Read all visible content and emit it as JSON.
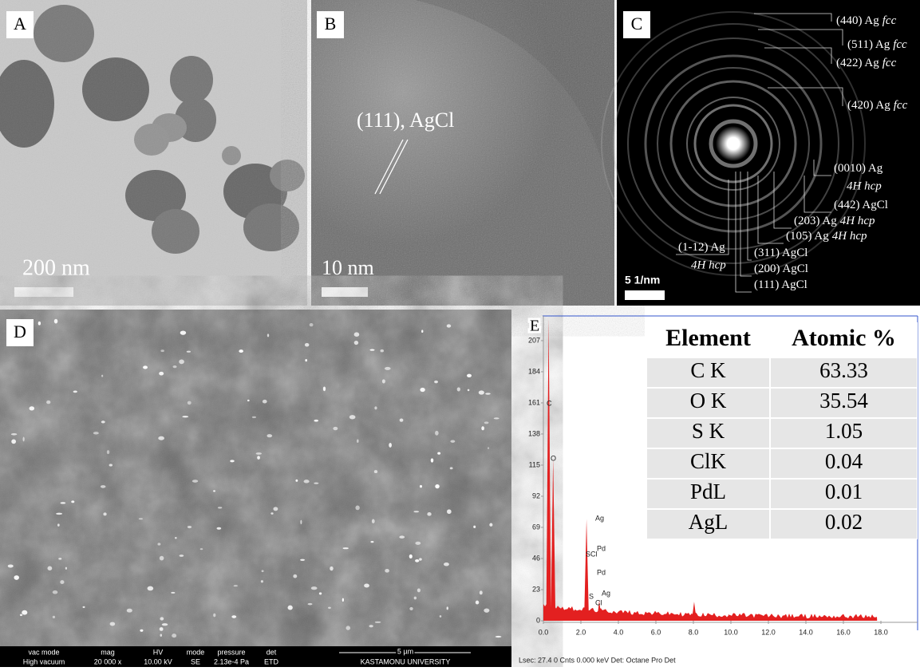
{
  "panels": {
    "a": {
      "label": "A",
      "scale_bar": "200 nm"
    },
    "b": {
      "label": "B",
      "annotation": "(111), AgCl",
      "scale_bar": "10 nm"
    },
    "c": {
      "label": "C",
      "scale_bar": "5 1/nm",
      "rings": [
        {
          "plane": "(440) Ag",
          "phase": "fcc"
        },
        {
          "plane": "(511) Ag",
          "phase": "fcc"
        },
        {
          "plane": "(422) Ag",
          "phase": "fcc"
        },
        {
          "plane": "(420) Ag",
          "phase": "fcc"
        },
        {
          "plane": "(0010) Ag",
          "phase": "4H hcp"
        },
        {
          "plane": "(442) AgCl"
        },
        {
          "plane": "(203) Ag",
          "phase": "4H hcp"
        },
        {
          "plane": "(105) Ag",
          "phase": "4H hcp"
        },
        {
          "plane": "(311) AgCl"
        },
        {
          "plane": "(200) AgCl"
        },
        {
          "plane": "(111) AgCl"
        },
        {
          "plane": "(1-12) Ag",
          "phase": "4H hcp"
        }
      ]
    },
    "d": {
      "label": "D",
      "info_bar": [
        {
          "key": "vac mode",
          "value": "High vacuum"
        },
        {
          "key": "mag",
          "value": "20 000 x"
        },
        {
          "key": "HV",
          "value": "10.00 kV"
        },
        {
          "key": "mode",
          "value": "SE"
        },
        {
          "key": "pressure",
          "value": "2.13e-4 Pa"
        },
        {
          "key": "det",
          "value": "ETD"
        }
      ],
      "scale_bar": "5 µm",
      "institution": "KASTAMONU UNIVERSITY"
    },
    "e": {
      "label": "E",
      "spectrum": {
        "xlim": [
          0,
          19.5
        ],
        "ylim": [
          0,
          225
        ],
        "yticks": [
          0,
          23,
          46,
          69,
          92,
          115,
          138,
          161,
          184,
          207
        ],
        "xticks": [
          {
            "value": 0,
            "label": "0.0"
          },
          {
            "value": 2,
            "label": "2.0"
          },
          {
            "value": 4,
            "label": "4.0"
          },
          {
            "value": 6,
            "label": "6.0"
          },
          {
            "value": 8,
            "label": "8.0"
          },
          {
            "value": 10,
            "label": "10.0"
          },
          {
            "value": 12,
            "label": "12.0"
          },
          {
            "value": 14,
            "label": "14.0"
          },
          {
            "value": 16,
            "label": "16.0"
          },
          {
            "value": 18,
            "label": "18.0"
          }
        ],
        "peaks": {
          "x": [
            0.28,
            0.52,
            2.3,
            2.98,
            8.04,
            9.9
          ],
          "y": [
            224,
            120,
            75,
            15,
            14,
            5
          ]
        },
        "peak_labels": [
          "C",
          "O",
          "Ag",
          "S",
          "Cl",
          "Pd",
          "Pd",
          "S",
          "Cl",
          "Ag"
        ],
        "status": "Lsec: 27.4 0 Cnts 0.000 keV Det: Octane Pro Det"
      },
      "table": {
        "header": [
          "Element",
          "Atomic %"
        ],
        "rows": [
          [
            "C K",
            63.33
          ],
          [
            "O K",
            35.54
          ],
          [
            "S K",
            1.05
          ],
          [
            "ClK",
            0.04
          ],
          [
            "PdL",
            0.01
          ],
          [
            "AgL",
            0.02
          ]
        ]
      }
    }
  }
}
